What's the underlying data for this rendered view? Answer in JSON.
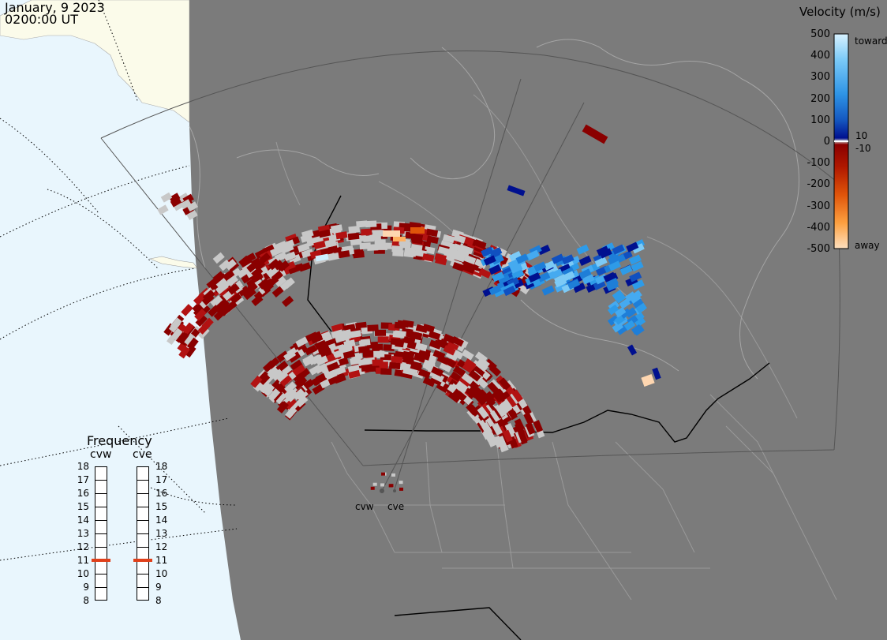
{
  "header": {
    "date": "January, 9 2023",
    "time": "0200:00 UT"
  },
  "colorbar": {
    "title": "Velocity (m/s)",
    "ticks": [
      "500",
      "400",
      "300",
      "200",
      "100",
      "0",
      "-100",
      "-200",
      "-300",
      "-400",
      "-500"
    ],
    "inner_labels": [
      "10",
      "-10"
    ],
    "toward_label": "toward",
    "away_label": "away",
    "colors": {
      "toward_light": "#cdeefe",
      "toward_mid": "#2e9be8",
      "toward_dark": "#00108f",
      "zero": "#c8c8c8",
      "away_dark": "#8a0000",
      "away_mid": "#e0550a",
      "away_light": "#fed6b0"
    }
  },
  "frequency": {
    "title": "Frequency",
    "radars": [
      "cvw",
      "cve"
    ],
    "ticks": [
      "18",
      "17",
      "16",
      "15",
      "14",
      "13",
      "12",
      "11",
      "10",
      "9",
      "8"
    ],
    "values_mhz": [
      11,
      11
    ],
    "marker_color": "#e0401a"
  },
  "map": {
    "radar_sites": [
      "cvw",
      "cve"
    ],
    "colors": {
      "night": "#7b7b7b",
      "day_ocean": "#e9f6fd",
      "day_land": "#fbfbea",
      "ground_scatter": "#c8c8c8"
    }
  }
}
